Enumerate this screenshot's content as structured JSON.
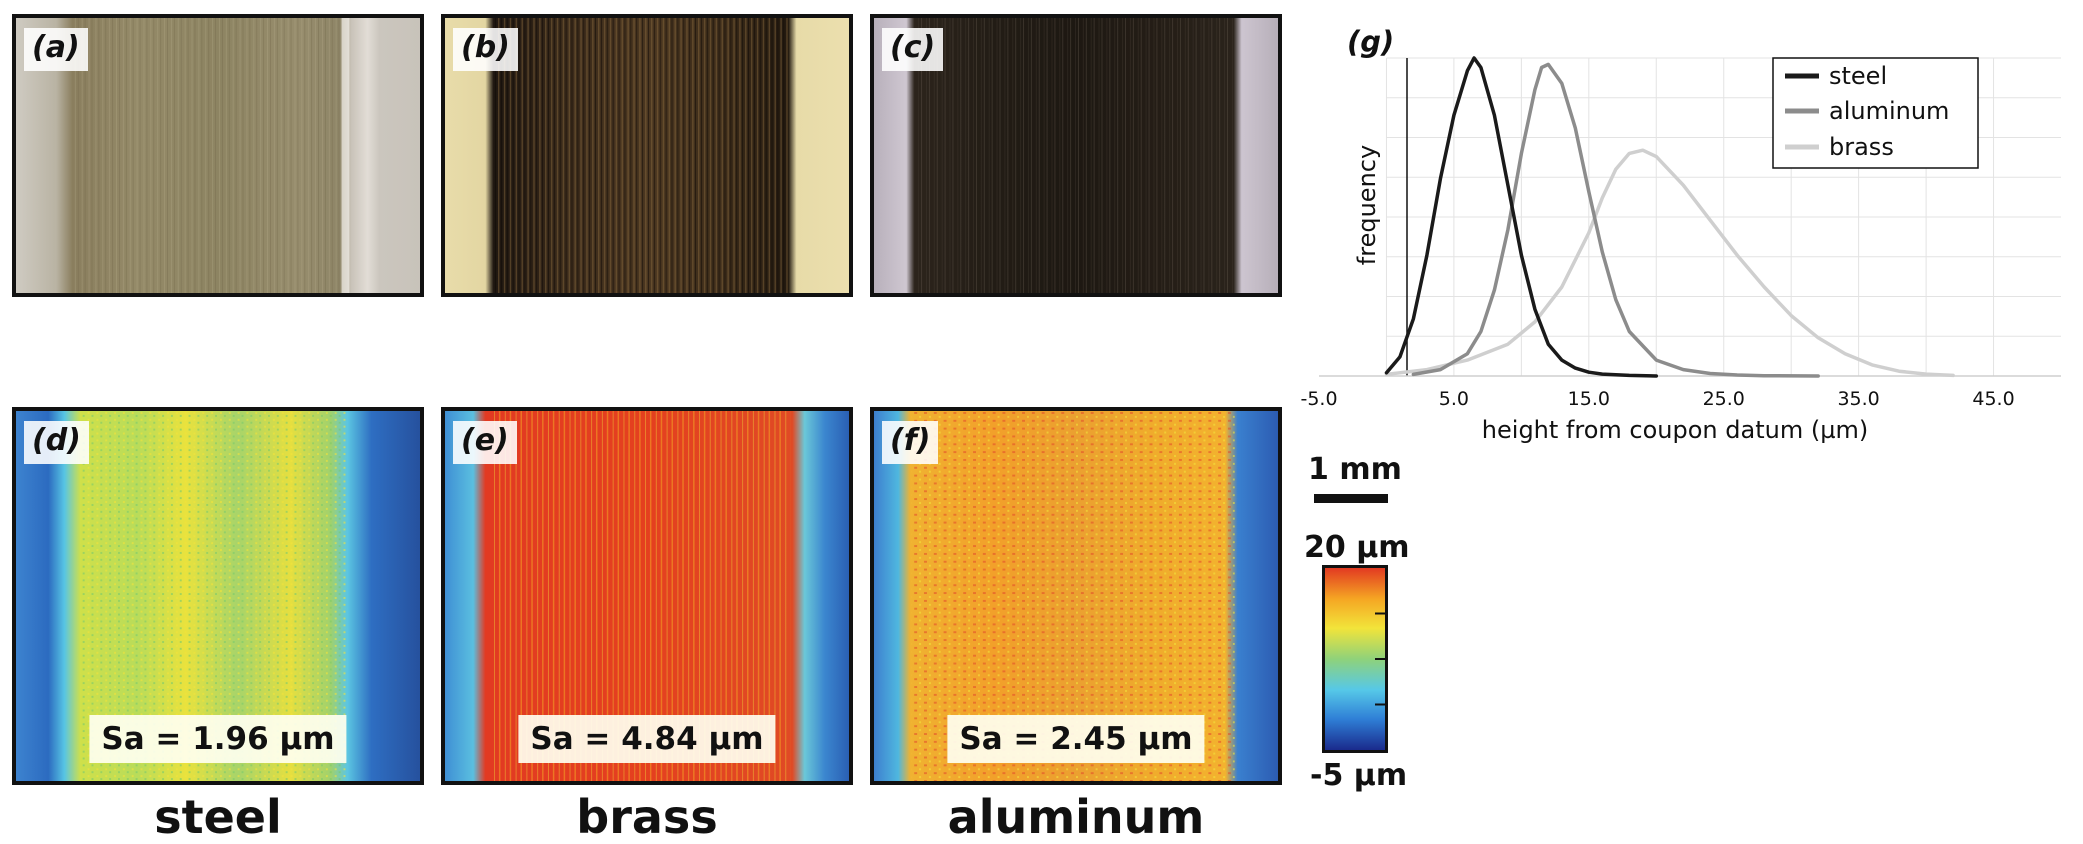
{
  "panels": {
    "a": {
      "label": "(a)"
    },
    "b": {
      "label": "(b)"
    },
    "c": {
      "label": "(c)"
    },
    "d": {
      "label": "(d)",
      "sa": "Sa = 1.96 µm"
    },
    "e": {
      "label": "(e)",
      "sa": "Sa = 4.84 µm"
    },
    "f": {
      "label": "(f)",
      "sa": "Sa = 2.45 µm"
    }
  },
  "materials": [
    "steel",
    "brass",
    "aluminum"
  ],
  "scale_bar": {
    "label": "1 mm"
  },
  "colorbar": {
    "max_label": "20 µm",
    "min_label": "-5 µm",
    "colors": [
      "#1a2a8c",
      "#2f7fd6",
      "#56c8e8",
      "#8fd27a",
      "#f2e43a",
      "#f5a623",
      "#e23a22"
    ]
  },
  "chart_data": {
    "type": "line",
    "panel_label": "(g)",
    "xlabel": "height from coupon datum (µm)",
    "ylabel": "frequency",
    "xticks": [
      "-5.0",
      "5.0",
      "15.0",
      "25.0",
      "35.0",
      "45.0"
    ],
    "xlim": [
      -5,
      50
    ],
    "ylim": [
      0,
      1
    ],
    "y_tick_labels_shown": false,
    "grid": true,
    "legend_position": "top-right",
    "series": [
      {
        "name": "steel",
        "color": "#1a1a1a",
        "x": [
          0,
          1,
          2,
          3,
          4,
          5,
          6,
          6.5,
          7,
          8,
          9,
          10,
          11,
          12,
          13,
          14,
          15,
          16,
          18,
          20
        ],
        "y": [
          0.01,
          0.06,
          0.18,
          0.38,
          0.62,
          0.82,
          0.96,
          1.0,
          0.97,
          0.82,
          0.6,
          0.38,
          0.21,
          0.1,
          0.05,
          0.025,
          0.012,
          0.006,
          0.002,
          0
        ]
      },
      {
        "name": "aluminum",
        "color": "#8c8c8c",
        "x": [
          2,
          4,
          6,
          7,
          8,
          9,
          10,
          11,
          11.5,
          12,
          13,
          14,
          15,
          16,
          17,
          18,
          20,
          22,
          24,
          26,
          28,
          32
        ],
        "y": [
          0.005,
          0.02,
          0.07,
          0.14,
          0.27,
          0.46,
          0.7,
          0.9,
          0.97,
          0.98,
          0.92,
          0.78,
          0.58,
          0.39,
          0.24,
          0.14,
          0.05,
          0.02,
          0.008,
          0.003,
          0.001,
          0
        ]
      },
      {
        "name": "brass",
        "color": "#cfcfcf",
        "x": [
          0,
          3,
          6,
          9,
          11,
          13,
          15,
          16,
          17,
          18,
          19,
          20,
          22,
          24,
          26,
          28,
          30,
          32,
          34,
          36,
          38,
          40,
          42
        ],
        "y": [
          0.005,
          0.02,
          0.05,
          0.1,
          0.17,
          0.28,
          0.45,
          0.56,
          0.65,
          0.7,
          0.71,
          0.69,
          0.6,
          0.49,
          0.38,
          0.28,
          0.19,
          0.12,
          0.07,
          0.035,
          0.015,
          0.006,
          0.002
        ]
      }
    ]
  }
}
